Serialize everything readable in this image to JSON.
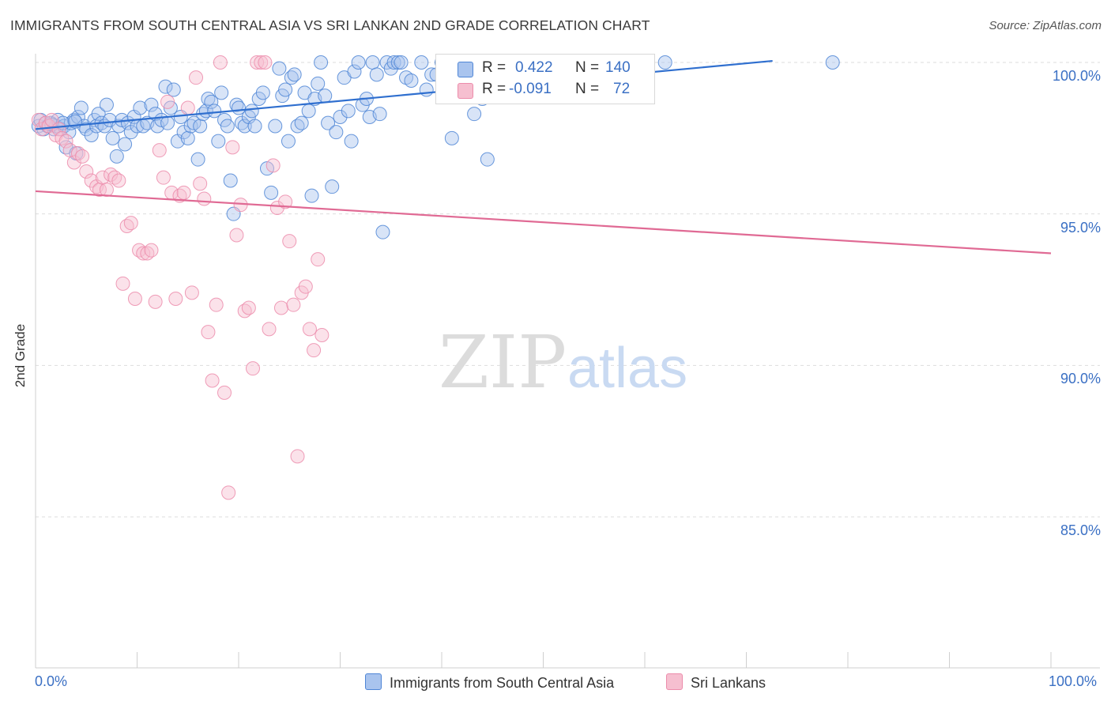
{
  "title": "IMMIGRANTS FROM SOUTH CENTRAL ASIA VS SRI LANKAN 2ND GRADE CORRELATION CHART",
  "source": "Source: ZipAtlas.com",
  "watermark": {
    "zip": "ZIP",
    "atlas": "atlas"
  },
  "colors": {
    "blue_fill": "#a9c4ee",
    "blue_stroke": "#4f86d6",
    "blue_line": "#2f6fcf",
    "pink_fill": "#f6bfd0",
    "pink_stroke": "#ec8cab",
    "pink_line": "#e06a94",
    "axis_text": "#3b70c4",
    "grid": "#dddddd"
  },
  "legend": {
    "r_label": "R =",
    "n_label": "N =",
    "series": [
      {
        "r": "0.422",
        "n": "140"
      },
      {
        "r": "-0.091",
        "n": "72"
      }
    ]
  },
  "bottom_legend": [
    "Immigrants from South Central Asia",
    "Sri Lankans"
  ],
  "chart_data": {
    "type": "scatter",
    "title": "IMMIGRANTS FROM SOUTH CENTRAL ASIA VS SRI LANKAN 2ND GRADE CORRELATION CHART",
    "xlabel": "",
    "ylabel": "2nd Grade",
    "xlim": [
      0,
      100
    ],
    "ylim": [
      80.0,
      100.8
    ],
    "x_tick_labels": [
      "0.0%",
      "100.0%"
    ],
    "y_ticks": [
      100.0,
      95.0,
      90.0,
      85.0
    ],
    "y_tick_labels": [
      "100.0%",
      "95.0%",
      "90.0%",
      "85.0%"
    ],
    "grid": true,
    "legend_position": "top-center",
    "series": [
      {
        "name": "Immigrants from South Central Asia",
        "r": 0.422,
        "n": 140,
        "trend": {
          "x0": 0,
          "y0": 97.8,
          "x1": 100,
          "y1": 100.9
        },
        "points": [
          [
            0.3,
            97.9
          ],
          [
            0.5,
            98.1
          ],
          [
            0.8,
            97.8
          ],
          [
            1.0,
            98.0
          ],
          [
            1.2,
            97.9
          ],
          [
            1.5,
            98.0
          ],
          [
            1.8,
            97.8
          ],
          [
            2.0,
            97.9
          ],
          [
            2.2,
            98.1
          ],
          [
            2.5,
            97.8
          ],
          [
            2.8,
            97.9
          ],
          [
            3.0,
            97.2
          ],
          [
            3.3,
            97.7
          ],
          [
            3.5,
            98.0
          ],
          [
            3.8,
            98.1
          ],
          [
            4.0,
            97.0
          ],
          [
            4.2,
            98.2
          ],
          [
            4.5,
            98.5
          ],
          [
            4.8,
            97.9
          ],
          [
            5.0,
            97.8
          ],
          [
            5.5,
            97.6
          ],
          [
            5.8,
            98.1
          ],
          [
            6.0,
            97.9
          ],
          [
            6.2,
            98.3
          ],
          [
            6.5,
            98.0
          ],
          [
            6.8,
            97.9
          ],
          [
            7.0,
            98.6
          ],
          [
            7.3,
            98.1
          ],
          [
            7.6,
            97.5
          ],
          [
            8.0,
            96.9
          ],
          [
            8.2,
            97.9
          ],
          [
            8.5,
            98.1
          ],
          [
            8.8,
            97.3
          ],
          [
            9.1,
            98.0
          ],
          [
            9.4,
            97.7
          ],
          [
            9.7,
            98.2
          ],
          [
            10.0,
            97.9
          ],
          [
            10.3,
            98.5
          ],
          [
            10.6,
            97.9
          ],
          [
            11.0,
            98.0
          ],
          [
            11.4,
            98.6
          ],
          [
            11.8,
            98.3
          ],
          [
            12.0,
            97.9
          ],
          [
            12.4,
            98.1
          ],
          [
            12.8,
            99.2
          ],
          [
            13.0,
            98.0
          ],
          [
            13.3,
            98.5
          ],
          [
            13.6,
            99.1
          ],
          [
            14.0,
            97.4
          ],
          [
            14.3,
            98.2
          ],
          [
            14.6,
            97.7
          ],
          [
            15.0,
            97.5
          ],
          [
            15.3,
            97.9
          ],
          [
            15.6,
            98.0
          ],
          [
            16.0,
            96.8
          ],
          [
            16.2,
            97.9
          ],
          [
            16.5,
            98.3
          ],
          [
            16.8,
            98.4
          ],
          [
            17.0,
            98.8
          ],
          [
            17.3,
            98.7
          ],
          [
            17.6,
            98.4
          ],
          [
            18.0,
            97.4
          ],
          [
            18.3,
            99.0
          ],
          [
            18.6,
            98.1
          ],
          [
            18.9,
            97.9
          ],
          [
            19.2,
            96.1
          ],
          [
            19.5,
            95.0
          ],
          [
            19.8,
            98.6
          ],
          [
            20.0,
            98.5
          ],
          [
            20.3,
            98.0
          ],
          [
            20.6,
            97.9
          ],
          [
            21.0,
            98.2
          ],
          [
            21.3,
            98.4
          ],
          [
            21.6,
            97.9
          ],
          [
            22.0,
            98.8
          ],
          [
            22.4,
            99.0
          ],
          [
            22.8,
            96.5
          ],
          [
            23.2,
            95.7
          ],
          [
            23.6,
            97.9
          ],
          [
            24.0,
            99.8
          ],
          [
            24.3,
            98.9
          ],
          [
            24.6,
            99.1
          ],
          [
            24.9,
            97.4
          ],
          [
            25.2,
            99.5
          ],
          [
            25.5,
            99.6
          ],
          [
            25.8,
            97.9
          ],
          [
            26.2,
            98.0
          ],
          [
            26.5,
            99.0
          ],
          [
            26.9,
            98.4
          ],
          [
            27.2,
            95.6
          ],
          [
            27.5,
            98.8
          ],
          [
            27.8,
            99.3
          ],
          [
            28.1,
            100.0
          ],
          [
            28.5,
            98.9
          ],
          [
            28.8,
            98.0
          ],
          [
            29.2,
            95.9
          ],
          [
            29.6,
            97.7
          ],
          [
            30.0,
            98.2
          ],
          [
            30.4,
            99.5
          ],
          [
            30.8,
            98.4
          ],
          [
            31.1,
            97.4
          ],
          [
            31.4,
            99.7
          ],
          [
            31.8,
            100.0
          ],
          [
            32.2,
            98.6
          ],
          [
            32.6,
            98.8
          ],
          [
            32.9,
            98.2
          ],
          [
            33.2,
            100.0
          ],
          [
            33.6,
            99.6
          ],
          [
            33.9,
            98.3
          ],
          [
            34.2,
            94.4
          ],
          [
            34.6,
            100.0
          ],
          [
            35.0,
            99.8
          ],
          [
            35.3,
            100.0
          ],
          [
            35.7,
            100.0
          ],
          [
            36.0,
            100.0
          ],
          [
            36.5,
            99.5
          ],
          [
            37.0,
            99.4
          ],
          [
            38.0,
            100.0
          ],
          [
            38.5,
            99.1
          ],
          [
            39.0,
            99.6
          ],
          [
            39.5,
            99.6
          ],
          [
            40.0,
            100.0
          ],
          [
            40.5,
            99.2
          ],
          [
            41.0,
            97.5
          ],
          [
            41.5,
            98.9
          ],
          [
            42.0,
            100.0
          ],
          [
            42.4,
            99.8
          ],
          [
            42.8,
            98.9
          ],
          [
            43.2,
            98.3
          ],
          [
            43.6,
            98.9
          ],
          [
            44.0,
            98.8
          ],
          [
            44.5,
            96.8
          ],
          [
            47.0,
            99.7
          ],
          [
            49.0,
            99.6
          ],
          [
            52.0,
            100.0
          ],
          [
            62.0,
            100.0
          ],
          [
            78.5,
            100.0
          ],
          [
            1.6,
            97.95
          ],
          [
            2.7,
            98.0
          ],
          [
            3.9,
            98.05
          ]
        ]
      },
      {
        "name": "Sri Lankans",
        "r": -0.091,
        "n": 72,
        "trend": {
          "x0": 0,
          "y0": 95.75,
          "x1": 100,
          "y1": 93.7
        },
        "points": [
          [
            0.3,
            98.1
          ],
          [
            0.6,
            97.8
          ],
          [
            1.0,
            98.0
          ],
          [
            1.3,
            97.9
          ],
          [
            1.6,
            98.1
          ],
          [
            2.0,
            97.6
          ],
          [
            2.3,
            97.8
          ],
          [
            2.6,
            97.5
          ],
          [
            3.0,
            97.4
          ],
          [
            3.4,
            97.1
          ],
          [
            3.8,
            96.7
          ],
          [
            4.2,
            97.0
          ],
          [
            4.6,
            96.9
          ],
          [
            5.0,
            96.4
          ],
          [
            5.5,
            96.1
          ],
          [
            6.0,
            95.9
          ],
          [
            6.3,
            95.8
          ],
          [
            6.6,
            96.2
          ],
          [
            7.0,
            95.8
          ],
          [
            7.4,
            96.3
          ],
          [
            7.8,
            96.2
          ],
          [
            8.2,
            96.1
          ],
          [
            8.6,
            92.7
          ],
          [
            9.0,
            94.6
          ],
          [
            9.4,
            94.7
          ],
          [
            9.8,
            92.2
          ],
          [
            10.2,
            93.8
          ],
          [
            10.6,
            93.7
          ],
          [
            11.0,
            93.7
          ],
          [
            11.4,
            93.8
          ],
          [
            11.8,
            92.1
          ],
          [
            12.2,
            97.1
          ],
          [
            12.6,
            96.2
          ],
          [
            13.0,
            98.7
          ],
          [
            13.4,
            95.7
          ],
          [
            13.8,
            92.2
          ],
          [
            14.2,
            95.6
          ],
          [
            14.6,
            95.7
          ],
          [
            15.0,
            98.5
          ],
          [
            15.4,
            92.4
          ],
          [
            15.8,
            99.5
          ],
          [
            16.2,
            96.0
          ],
          [
            16.6,
            95.5
          ],
          [
            17.0,
            91.1
          ],
          [
            17.4,
            89.5
          ],
          [
            17.8,
            92.0
          ],
          [
            18.2,
            100.0
          ],
          [
            18.6,
            89.1
          ],
          [
            19.0,
            85.8
          ],
          [
            19.4,
            97.2
          ],
          [
            19.8,
            94.3
          ],
          [
            20.2,
            95.3
          ],
          [
            20.6,
            91.8
          ],
          [
            21.0,
            91.9
          ],
          [
            21.4,
            89.9
          ],
          [
            21.8,
            100.0
          ],
          [
            22.2,
            100.0
          ],
          [
            22.6,
            100.0
          ],
          [
            23.0,
            91.2
          ],
          [
            23.4,
            96.6
          ],
          [
            23.8,
            95.2
          ],
          [
            24.2,
            91.9
          ],
          [
            24.6,
            95.4
          ],
          [
            25.0,
            94.1
          ],
          [
            25.4,
            92.0
          ],
          [
            25.8,
            87.0
          ],
          [
            26.2,
            92.4
          ],
          [
            26.6,
            92.6
          ],
          [
            27.0,
            91.2
          ],
          [
            27.4,
            90.5
          ],
          [
            27.8,
            93.5
          ],
          [
            28.2,
            91.0
          ]
        ]
      }
    ]
  }
}
